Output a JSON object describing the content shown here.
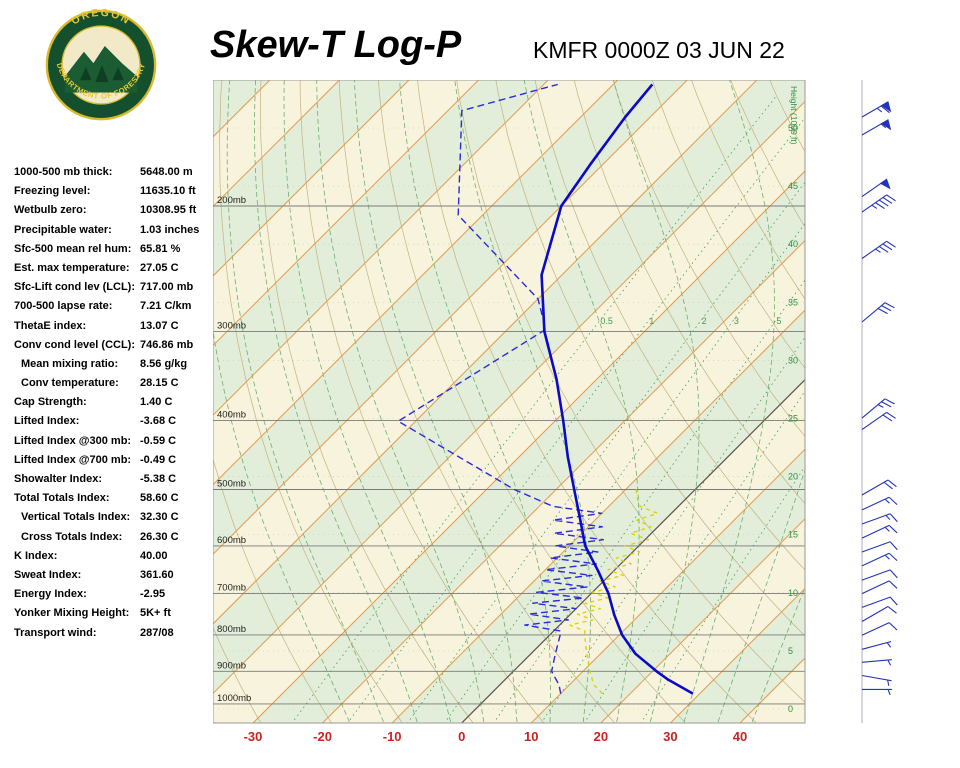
{
  "header": {
    "title": "Skew-T Log-P",
    "station": "KMFR 0000Z 03 JUN 22",
    "logo": {
      "arc_top": "OREGON",
      "arc_bottom": "DEPARTMENT OF FORESTRY",
      "ring_color": "#14502e",
      "text_color": "#e8c832"
    }
  },
  "stats": [
    {
      "label": "1000-500 mb thick:",
      "value": "5648.00 m",
      "indent": false
    },
    {
      "label": "Freezing level:",
      "value": "11635.10 ft",
      "indent": false
    },
    {
      "label": "Wetbulb zero:",
      "value": "10308.95 ft",
      "indent": false
    },
    {
      "label": "Precipitable water:",
      "value": "1.03 inches",
      "indent": false
    },
    {
      "label": "Sfc-500 mean rel hum:",
      "value": "65.81 %",
      "indent": false
    },
    {
      "label": "Est. max temperature:",
      "value": "27.05 C",
      "indent": false
    },
    {
      "label": "Sfc-Lift cond lev (LCL):",
      "value": "717.00 mb",
      "indent": false
    },
    {
      "label": "700-500 lapse rate:",
      "value": "7.21 C/km",
      "indent": false
    },
    {
      "label": "ThetaE index:",
      "value": "13.07 C",
      "indent": false
    },
    {
      "label": "Conv cond level (CCL):",
      "value": "746.86 mb",
      "indent": false
    },
    {
      "label": "Mean mixing ratio:",
      "value": "8.56 g/kg",
      "indent": true
    },
    {
      "label": "Conv temperature:",
      "value": "28.15 C",
      "indent": true
    },
    {
      "label": "Cap Strength:",
      "value": "1.40 C",
      "indent": false
    },
    {
      "label": "Lifted Index:",
      "value": "-3.68 C",
      "indent": false
    },
    {
      "label": "Lifted Index @300 mb:",
      "value": "-0.59 C",
      "indent": false
    },
    {
      "label": "Lifted Index @700 mb:",
      "value": "-0.49 C",
      "indent": false
    },
    {
      "label": "Showalter Index:",
      "value": "-5.38 C",
      "indent": false
    },
    {
      "label": "Total Totals Index:",
      "value": "58.60 C",
      "indent": false
    },
    {
      "label": "Vertical Totals Index:",
      "value": "32.30 C",
      "indent": true
    },
    {
      "label": "Cross Totals Index:",
      "value": "26.30 C",
      "indent": true
    },
    {
      "label": "K Index:",
      "value": "40.00",
      "indent": false
    },
    {
      "label": "Sweat Index:",
      "value": "361.60",
      "indent": false
    },
    {
      "label": "Energy Index:",
      "value": "-2.95",
      "indent": false
    },
    {
      "label": "Yonker Mixing Height:",
      "value": "5K+ ft",
      "indent": false
    },
    {
      "label": "Transport wind:",
      "value": "287/08",
      "indent": false
    }
  ],
  "chart_data": {
    "type": "skewt_log_p",
    "title": "Skew-T Log-P",
    "station_line": "KMFR 0000Z 03 JUN 22",
    "x_axis": {
      "ticks": [
        -30,
        -20,
        -10,
        0,
        10,
        20,
        30,
        40
      ],
      "unit": "C",
      "color": "#cc2222"
    },
    "pressure_lines": {
      "values": [
        200,
        300,
        400,
        500,
        600,
        700,
        800,
        900,
        1000
      ],
      "suffix": "mb",
      "color": "#7a7a7a",
      "label_color": "#222222"
    },
    "height_axis": {
      "title": "Height (1000 ft)",
      "ticks": [
        0,
        5,
        10,
        15,
        20,
        25,
        30,
        35,
        40,
        45,
        50
      ],
      "color": "#2f8f46"
    },
    "bands": {
      "colors": [
        "#f8f3dc",
        "#e2eed9"
      ]
    },
    "isotherms": {
      "min": -150,
      "max": 50,
      "step": 10,
      "color": "#e39a4d",
      "zero_color": "#555555"
    },
    "dry_adiabats": {
      "theta_k": [
        240,
        440,
        10
      ],
      "color": "#c2b280"
    },
    "moist_adiabats": {
      "thetaw_c": [
        -20,
        40,
        5
      ],
      "color": "#6fae6f"
    },
    "mixing_ratio": {
      "values": [
        0.5,
        1,
        2,
        3,
        5,
        8,
        12,
        20
      ],
      "label_values": [
        0.5,
        1,
        2,
        3,
        5
      ],
      "label_pressure": 290,
      "color": "#3f9e58"
    },
    "temperature_profile": {
      "color": "#0a0ac8",
      "points": [
        [
          967,
          29
        ],
        [
          925,
          23.5
        ],
        [
          900,
          20.6
        ],
        [
          850,
          15
        ],
        [
          800,
          10.4
        ],
        [
          750,
          6.4
        ],
        [
          700,
          2.5
        ],
        [
          650,
          -2.3
        ],
        [
          600,
          -7.7
        ],
        [
          550,
          -12.3
        ],
        [
          500,
          -17.4
        ],
        [
          450,
          -23
        ],
        [
          400,
          -28.9
        ],
        [
          350,
          -35.8
        ],
        [
          300,
          -44.4
        ],
        [
          250,
          -52.9
        ],
        [
          200,
          -60
        ],
        [
          175,
          -61.8
        ],
        [
          150,
          -63.6
        ],
        [
          135,
          -64.4
        ]
      ]
    },
    "dewpoint_profile": {
      "color": "#2b2bd8",
      "points": [
        [
          967,
          10
        ],
        [
          940,
          8.5
        ],
        [
          900,
          5.5
        ],
        [
          850,
          3.5
        ],
        [
          800,
          1.5
        ],
        [
          790,
          1
        ],
        [
          775,
          -5
        ],
        [
          762,
          0.5
        ],
        [
          748,
          -6
        ],
        [
          735,
          0
        ],
        [
          722,
          -7
        ],
        [
          710,
          -0.5
        ],
        [
          697,
          -8
        ],
        [
          685,
          -1.5
        ],
        [
          672,
          -9
        ],
        [
          660,
          -2.5
        ],
        [
          648,
          -10
        ],
        [
          636,
          -3.5
        ],
        [
          624,
          -11
        ],
        [
          612,
          -5
        ],
        [
          600,
          -12
        ],
        [
          588,
          -6
        ],
        [
          576,
          -14
        ],
        [
          564,
          -8
        ],
        [
          552,
          -16
        ],
        [
          540,
          -10
        ],
        [
          528,
          -18
        ],
        [
          500,
          -26
        ],
        [
          401,
          -52.5
        ],
        [
          298,
          -44.5
        ],
        [
          270,
          -50
        ],
        [
          206,
          -73.5
        ],
        [
          147,
          -88
        ],
        [
          135,
          -78
        ]
      ]
    },
    "wetbulb_profile": {
      "color": "#ddd000",
      "points": [
        [
          967,
          16
        ],
        [
          940,
          13.5
        ],
        [
          900,
          11
        ],
        [
          850,
          8
        ],
        [
          800,
          5
        ],
        [
          790,
          4.5
        ],
        [
          775,
          1.5
        ],
        [
          762,
          4
        ],
        [
          748,
          1
        ],
        [
          735,
          3.5
        ],
        [
          722,
          0.5
        ],
        [
          710,
          3
        ],
        [
          697,
          0
        ],
        [
          685,
          2.5
        ],
        [
          672,
          -0.5
        ],
        [
          660,
          2
        ],
        [
          648,
          -1
        ],
        [
          636,
          1.5
        ],
        [
          624,
          -1.5
        ],
        [
          612,
          1
        ],
        [
          600,
          -2
        ],
        [
          588,
          0.5
        ],
        [
          576,
          -3
        ],
        [
          564,
          -1
        ],
        [
          552,
          -4
        ],
        [
          540,
          -2
        ],
        [
          528,
          -5.5
        ],
        [
          515,
          -7
        ],
        [
          500,
          -8.5
        ]
      ]
    },
    "wind": {
      "color": "#2433b8",
      "barbs": [
        {
          "p": 150,
          "dir": 290,
          "spd": 65
        },
        {
          "p": 159,
          "dir": 290,
          "spd": 55
        },
        {
          "p": 194,
          "dir": 285,
          "spd": 50
        },
        {
          "p": 204,
          "dir": 285,
          "spd": 45
        },
        {
          "p": 237,
          "dir": 285,
          "spd": 35
        },
        {
          "p": 291,
          "dir": 280,
          "spd": 30
        },
        {
          "p": 397,
          "dir": 280,
          "spd": 25
        },
        {
          "p": 412,
          "dir": 285,
          "spd": 20
        },
        {
          "p": 509,
          "dir": 290,
          "spd": 20
        },
        {
          "p": 534,
          "dir": 295,
          "spd": 15
        },
        {
          "p": 559,
          "dir": 300,
          "spd": 15
        },
        {
          "p": 585,
          "dir": 295,
          "spd": 15
        },
        {
          "p": 612,
          "dir": 300,
          "spd": 10
        },
        {
          "p": 640,
          "dir": 295,
          "spd": 15
        },
        {
          "p": 670,
          "dir": 300,
          "spd": 10
        },
        {
          "p": 700,
          "dir": 295,
          "spd": 10
        },
        {
          "p": 732,
          "dir": 300,
          "spd": 10
        },
        {
          "p": 766,
          "dir": 290,
          "spd": 10
        },
        {
          "p": 801,
          "dir": 295,
          "spd": 10
        },
        {
          "p": 838,
          "dir": 305,
          "spd": 5
        },
        {
          "p": 874,
          "dir": 315,
          "spd": 5
        },
        {
          "p": 912,
          "dir": 330,
          "spd": 5
        },
        {
          "p": 954,
          "dir": 320,
          "spd": 5
        }
      ]
    }
  }
}
